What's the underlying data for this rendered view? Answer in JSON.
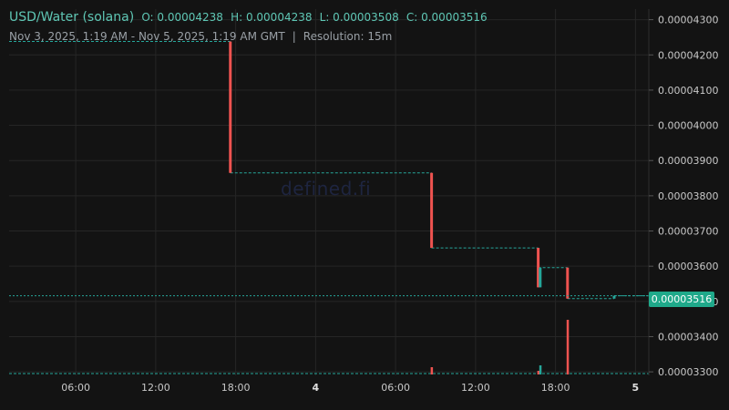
{
  "header": {
    "pair": "USD/Water (solana)",
    "open": "O: 0.00004238",
    "high": "H: 0.00004238",
    "low": "L: 0.00003508",
    "close": "C: 0.00003516",
    "range": "Nov 3, 2025, 1:19 AM - Nov 5, 2025, 1:19 AM GMT",
    "separator": "|",
    "resolution": "Resolution: 15m"
  },
  "watermark": "defined.fi",
  "current_price_label": "0.00003516",
  "colors": {
    "background": "#131313",
    "grid": "#262626",
    "up": "#26a69a",
    "down": "#ef5350",
    "accent": "#1fa98a"
  },
  "chart_data": {
    "type": "candlestick",
    "title": "USD/Water (solana)",
    "xlabel": "",
    "ylabel": "",
    "x_tick_labels": [
      "06:00",
      "12:00",
      "18:00",
      "4",
      "06:00",
      "12:00",
      "18:00",
      "5"
    ],
    "x_ticks_hours": [
      5,
      11,
      17,
      23,
      29,
      35,
      41,
      47
    ],
    "x_range_hours": [
      0,
      48
    ],
    "y_ticks": [
      "0.00003300",
      "0.00003400",
      "0.00003500",
      "0.00003600",
      "0.00003700",
      "0.00003800",
      "0.00003900",
      "0.00004000",
      "0.00004100",
      "0.00004200",
      "0.00004300"
    ],
    "ylim": [
      3.29e-05,
      4.33e-05
    ],
    "grid": true,
    "current_price": 3.516e-05,
    "level_steps": [
      {
        "from_h": 0,
        "to_h": 16.6,
        "price": 4.238e-05
      },
      {
        "from_h": 16.6,
        "to_h": 31.7,
        "price": 3.865e-05
      },
      {
        "from_h": 31.7,
        "to_h": 39.7,
        "price": 3.652e-05
      },
      {
        "from_h": 39.7,
        "to_h": 41.9,
        "price": 3.596e-05
      },
      {
        "from_h": 41.9,
        "to_h": 45.4,
        "price": 3.508e-05
      },
      {
        "from_h": 45.4,
        "to_h": 48,
        "price": 3.516e-05
      }
    ],
    "candles": [
      {
        "t_h": 16.6,
        "o": 4.238e-05,
        "h": 4.238e-05,
        "l": 3.865e-05,
        "c": 3.865e-05
      },
      {
        "t_h": 31.7,
        "o": 3.865e-05,
        "h": 3.865e-05,
        "l": 3.652e-05,
        "c": 3.652e-05
      },
      {
        "t_h": 39.7,
        "o": 3.652e-05,
        "h": 3.652e-05,
        "l": 3.54e-05,
        "c": 3.54e-05
      },
      {
        "t_h": 39.85,
        "o": 3.54e-05,
        "h": 3.596e-05,
        "l": 3.54e-05,
        "c": 3.596e-05
      },
      {
        "t_h": 41.9,
        "o": 3.596e-05,
        "h": 3.596e-05,
        "l": 3.508e-05,
        "c": 3.508e-05
      },
      {
        "t_h": 45.4,
        "o": 3.508e-05,
        "h": 3.516e-05,
        "l": 3.508e-05,
        "c": 3.516e-05
      }
    ],
    "volume": [
      {
        "t_h": 31.7,
        "v": 0.08,
        "dir": "down"
      },
      {
        "t_h": 39.7,
        "v": 0.04,
        "dir": "down"
      },
      {
        "t_h": 39.85,
        "v": 0.1,
        "dir": "up"
      },
      {
        "t_h": 41.9,
        "v": 0.6,
        "dir": "down"
      }
    ]
  }
}
